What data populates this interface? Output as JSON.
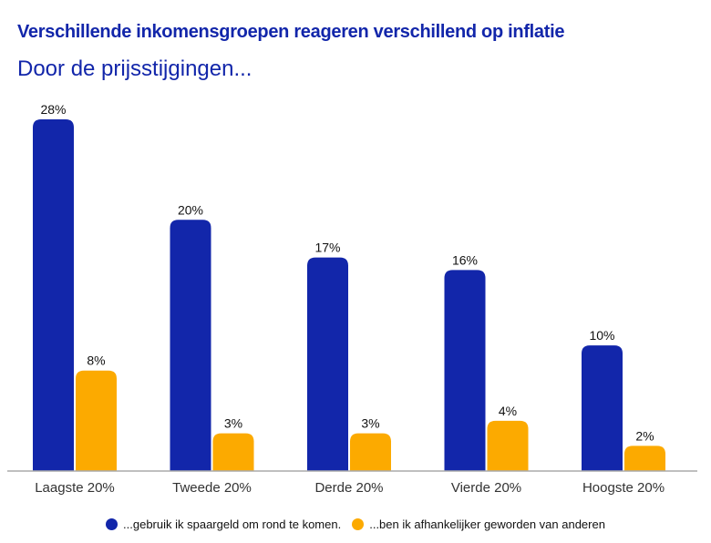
{
  "colors": {
    "series1": "#1226aa",
    "series2": "#fcaa00",
    "axis": "#aaaaaa"
  },
  "chart_data": {
    "type": "bar",
    "title": "Verschillende inkomensgroepen reageren verschillend op inflatie",
    "subtitle": "Door de prijsstijgingen...",
    "xlabel": "",
    "ylabel": "",
    "ylim": [
      0,
      28
    ],
    "grid": false,
    "legend_position": "bottom",
    "categories": [
      "Laagste 20%",
      "Tweede 20%",
      "Derde 20%",
      "Vierde 20%",
      "Hoogste 20%"
    ],
    "series": [
      {
        "name": "...gebruik ik spaargeld om rond te komen.",
        "values": [
          28,
          20,
          17,
          16,
          10
        ],
        "labels": [
          "28%",
          "20%",
          "17%",
          "16%",
          "10%"
        ]
      },
      {
        "name": "...ben ik afhankelijker geworden van anderen",
        "values": [
          8,
          3,
          3,
          4,
          2
        ],
        "labels": [
          "8%",
          "3%",
          "3%",
          "4%",
          "2%"
        ]
      }
    ]
  }
}
